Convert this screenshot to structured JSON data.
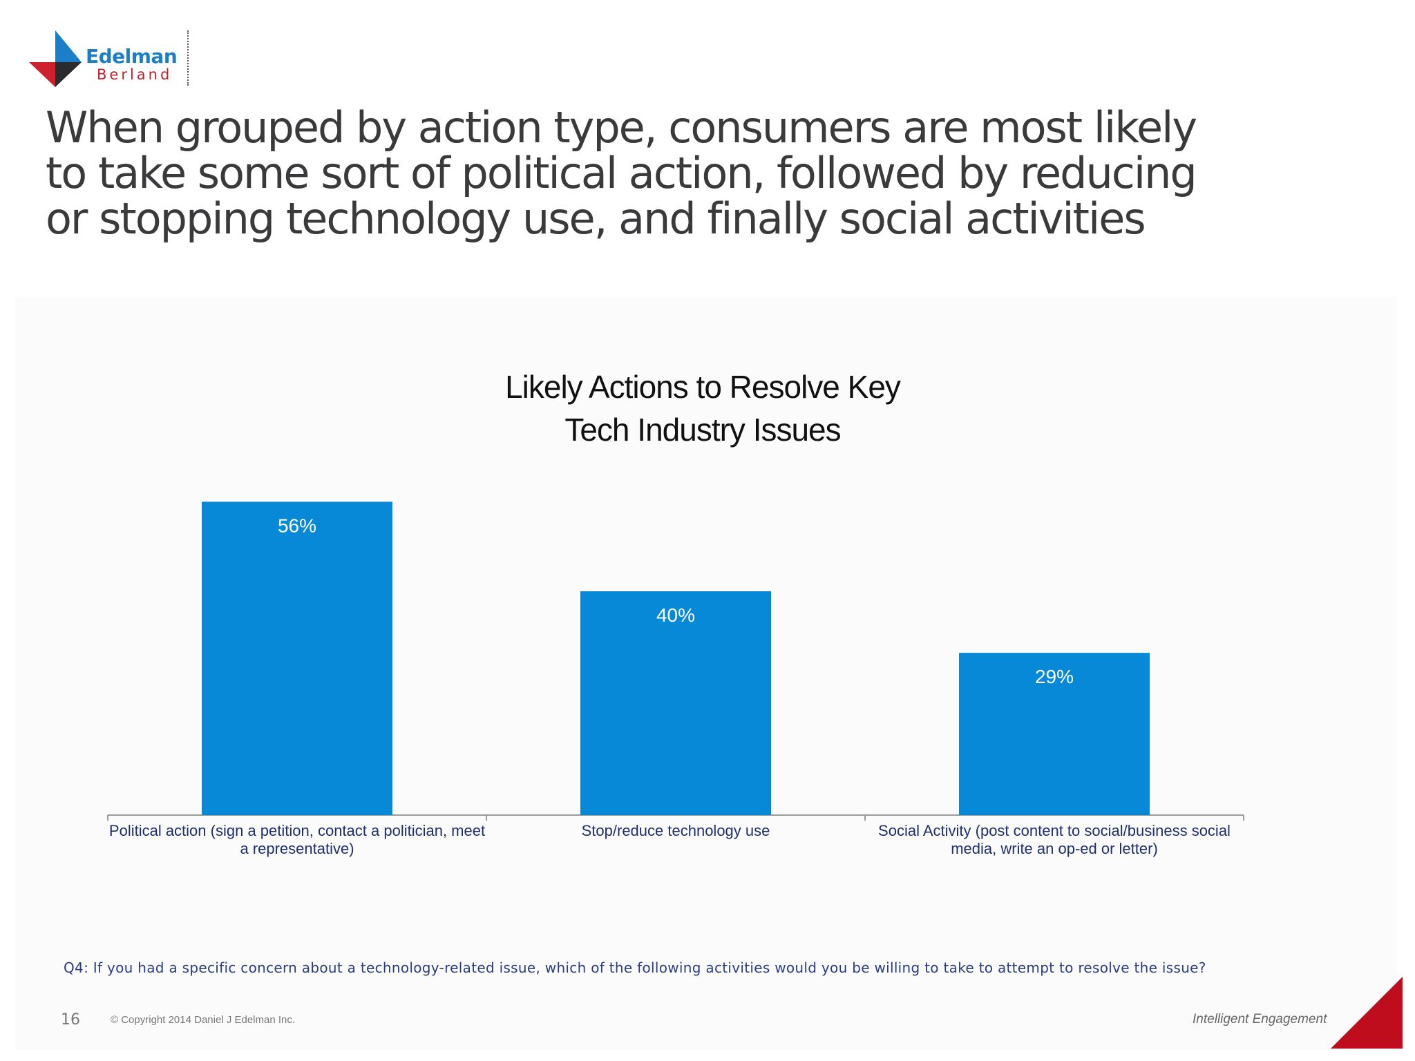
{
  "brand": {
    "name_line1": "Edelman",
    "name_line2": "Berland",
    "colors": {
      "blue": "#1a7ec8",
      "red": "#d0202e",
      "dark": "#2b2b2e",
      "accent_red": "#c00d1e"
    }
  },
  "headline": "When grouped by action type, consumers are most likely to take some sort of political action, followed by reducing or stopping technology use, and finally social activities",
  "chart_data": {
    "type": "bar",
    "title_lines": [
      "Likely Actions to Resolve Key",
      "Tech Industry Issues"
    ],
    "categories": [
      "Political action (sign a petition, contact a politician, meet a representative)",
      "Stop/reduce technology use",
      "Social Activity (post content to social/business social media, write an op-ed or letter)"
    ],
    "values": [
      56,
      40,
      29
    ],
    "value_labels": [
      "56%",
      "40%",
      "29%"
    ],
    "unit": "%",
    "ylim": [
      0,
      100
    ],
    "bar_color": "#0789d8",
    "grid": false,
    "legend": "none",
    "xlabel": "",
    "ylabel": ""
  },
  "question": "Q4: If you had a specific concern about a technology-related issue, which of the following activities would you be willing to take to attempt to resolve the issue?",
  "footer": {
    "page_number": "16",
    "copyright": "© Copyright 2014 Daniel J Edelman Inc.",
    "tagline": "Intelligent Engagement"
  }
}
